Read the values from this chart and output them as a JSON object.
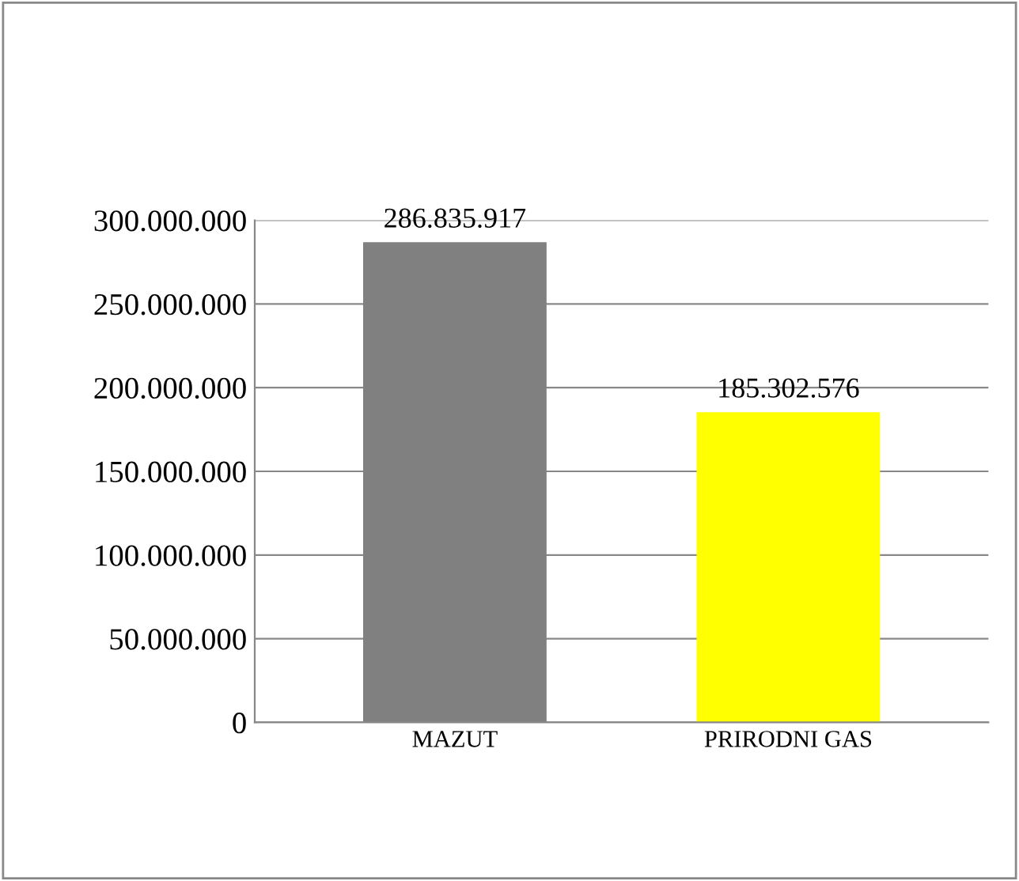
{
  "chart_data": {
    "type": "bar",
    "categories": [
      "MAZUT",
      "PRIRODNI GAS"
    ],
    "values": [
      286835917,
      185302576
    ],
    "colors": [
      "#808080",
      "#ffff00"
    ],
    "value_labels": [
      "286.835.917",
      "185.302.576"
    ],
    "ylim": [
      0,
      300000000
    ],
    "yticks": [
      {
        "value": 0,
        "label": "0"
      },
      {
        "value": 50000000,
        "label": "50.000.000"
      },
      {
        "value": 100000000,
        "label": "100.000.000"
      },
      {
        "value": 150000000,
        "label": "150.000.000"
      },
      {
        "value": 200000000,
        "label": "200.000.000"
      },
      {
        "value": 250000000,
        "label": "250.000.000"
      },
      {
        "value": 300000000,
        "label": "300.000.000"
      }
    ],
    "grid": "y"
  }
}
